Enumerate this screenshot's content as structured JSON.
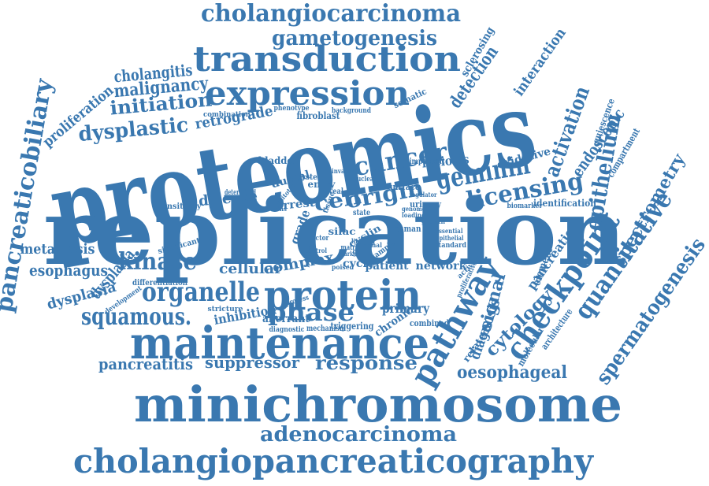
{
  "color": "#3a78b0",
  "words": [
    {
      "id": "proteomics",
      "text": "proteomics"
    },
    {
      "id": "replication",
      "text": "replication"
    },
    {
      "id": "minichromosome",
      "text": "minichromosome"
    },
    {
      "id": "maintenance",
      "text": "maintenance"
    },
    {
      "id": "cholangiopancreaticography",
      "text": "cholangiopancreaticography"
    },
    {
      "id": "protein",
      "text": "protein"
    },
    {
      "id": "transduction",
      "text": "transduction"
    },
    {
      "id": "expression",
      "text": "expression"
    },
    {
      "id": "cholangiocarcinoma",
      "text": "cholangiocarcinoma"
    },
    {
      "id": "gametogenesis",
      "text": "gametogenesis"
    },
    {
      "id": "pancreaticobiliary",
      "text": "pancreaticobiliary"
    },
    {
      "id": "adenocarcinoma",
      "text": "adenocarcinoma"
    },
    {
      "id": "organelle",
      "text": "organelle"
    },
    {
      "id": "pathway",
      "text": "pathway"
    },
    {
      "id": "checkpoint",
      "text": "checkpoint"
    },
    {
      "id": "quantitative",
      "text": "quantitative"
    },
    {
      "id": "spermatogenesis",
      "text": "spermatogenesis"
    },
    {
      "id": "spectrometry",
      "text": "spectrometry"
    },
    {
      "id": "epithelium",
      "text": "epithelium"
    },
    {
      "id": "geminin",
      "text": "geminin"
    },
    {
      "id": "licensing",
      "text": "licensing"
    },
    {
      "id": "cancer",
      "text": "cancer"
    },
    {
      "id": "origin",
      "text": "origin"
    },
    {
      "id": "cell",
      "text": "cell"
    },
    {
      "id": "kinase",
      "text": "kinase"
    },
    {
      "id": "squamous",
      "text": "squamous."
    },
    {
      "id": "phase",
      "text": "phase"
    },
    {
      "id": "response",
      "text": "response"
    },
    {
      "id": "oesophageal",
      "text": "oesophageal"
    },
    {
      "id": "dysplastic",
      "text": "dysplastic"
    },
    {
      "id": "initiation",
      "text": "initiation"
    },
    {
      "id": "malignancy",
      "text": "malignancy"
    },
    {
      "id": "cholangitis",
      "text": "cholangitis"
    },
    {
      "id": "proliferation",
      "text": "proliferation"
    },
    {
      "id": "metastasis",
      "text": "metastasis"
    },
    {
      "id": "esophagus",
      "text": "esophagus"
    },
    {
      "id": "dysplasia",
      "text": "dysplasia"
    },
    {
      "id": "dysplasia2",
      "text": "dysplasia"
    },
    {
      "id": "pancreatitis",
      "text": "pancreatitis"
    },
    {
      "id": "suppressor",
      "text": "suppressor"
    },
    {
      "id": "inhibition",
      "text": "inhibition"
    },
    {
      "id": "complex",
      "text": "complex"
    },
    {
      "id": "cellular",
      "text": "cellular"
    },
    {
      "id": "disease",
      "text": "disease"
    },
    {
      "id": "retrograde",
      "text": "retrograde"
    },
    {
      "id": "meiosis",
      "text": "meiosis"
    },
    {
      "id": "activation",
      "text": "activation"
    },
    {
      "id": "endoscopic",
      "text": "endoscopic"
    },
    {
      "id": "detection",
      "text": "detection"
    },
    {
      "id": "interaction",
      "text": "interaction"
    },
    {
      "id": "sclerosing",
      "text": "sclerosing"
    },
    {
      "id": "cytology",
      "text": "cytology"
    },
    {
      "id": "signal",
      "text": "signal"
    },
    {
      "id": "diagnosis",
      "text": "diagnosis"
    },
    {
      "id": "pancreatic",
      "text": "pancreatic"
    },
    {
      "id": "network",
      "text": "network"
    },
    {
      "id": "patient",
      "text": "patient"
    },
    {
      "id": "primary",
      "text": "primary"
    },
    {
      "id": "aberrant",
      "text": "aberrant"
    },
    {
      "id": "triggering",
      "text": "triggering"
    },
    {
      "id": "chronic",
      "text": "chronic"
    },
    {
      "id": "identification",
      "text": "identification"
    },
    {
      "id": "oxidative",
      "text": "oxidative"
    },
    {
      "id": "compartment",
      "text": "compartment"
    },
    {
      "id": "quiescence",
      "text": "quiescence"
    },
    {
      "id": "element",
      "text": "element"
    },
    {
      "id": "related",
      "text": "related"
    },
    {
      "id": "molecular",
      "text": "molecular"
    },
    {
      "id": "architecture",
      "text": "architecture"
    },
    {
      "id": "grade",
      "text": "grade"
    },
    {
      "id": "arrest",
      "text": "arrest"
    },
    {
      "id": "ductal",
      "text": "ductal"
    },
    {
      "id": "bladder",
      "text": "bladder"
    },
    {
      "id": "fibroblast",
      "text": "fibroblast"
    },
    {
      "id": "combination",
      "text": "combination"
    },
    {
      "id": "phenotype",
      "text": "phenotype"
    },
    {
      "id": "background",
      "text": "background"
    },
    {
      "id": "somatic",
      "text": "somatic"
    },
    {
      "id": "significant",
      "text": "significant"
    },
    {
      "id": "sensitivity",
      "text": "sensitivity"
    },
    {
      "id": "differentiation",
      "text": "differentiation"
    },
    {
      "id": "development",
      "text": "development"
    },
    {
      "id": "stricture",
      "text": "stricture"
    },
    {
      "id": "diagnostic",
      "text": "diagnostic"
    },
    {
      "id": "mechanism",
      "text": "mechanism"
    },
    {
      "id": "combined",
      "text": "combined"
    },
    {
      "id": "cycle",
      "text": "cycle"
    },
    {
      "id": "cyclin",
      "text": "cyclin"
    },
    {
      "id": "silac",
      "text": "silac"
    },
    {
      "id": "human",
      "text": "human"
    },
    {
      "id": "surface",
      "text": "surface"
    },
    {
      "id": "entry",
      "text": "entry"
    },
    {
      "id": "system",
      "text": "system"
    },
    {
      "id": "important",
      "text": "important"
    },
    {
      "id": "urinary",
      "text": "urinary"
    },
    {
      "id": "biomarker",
      "text": "biomarker"
    },
    {
      "id": "standard",
      "text": "standard"
    },
    {
      "id": "essential",
      "text": "essential"
    },
    {
      "id": "epithelial",
      "text": "epithelial"
    },
    {
      "id": "growth",
      "text": "growth"
    },
    {
      "id": "activate",
      "text": "activate"
    },
    {
      "id": "proliferative",
      "text": "proliferative"
    },
    {
      "id": "determined",
      "text": "determined"
    },
    {
      "id": "germ",
      "text": "germ"
    },
    {
      "id": "normal",
      "text": "normal"
    },
    {
      "id": "matrix",
      "text": "matrix"
    },
    {
      "id": "marker",
      "text": "marker"
    },
    {
      "id": "limiting",
      "text": "limiting"
    },
    {
      "id": "sample",
      "text": "sample"
    },
    {
      "id": "state",
      "text": "state"
    },
    {
      "id": "poised",
      "text": "poised"
    },
    {
      "id": "lesions",
      "text": "lesions"
    },
    {
      "id": "factor",
      "text": "factor"
    },
    {
      "id": "nuclear",
      "text": "nuclear"
    },
    {
      "id": "reveal",
      "text": "reveal"
    },
    {
      "id": "regulator",
      "text": "regulator"
    },
    {
      "id": "genome",
      "text": "genome"
    },
    {
      "id": "loading",
      "text": "loading"
    },
    {
      "id": "mitotic",
      "text": "mitotic"
    },
    {
      "id": "biopsy",
      "text": "biopsy"
    },
    {
      "id": "tissue",
      "text": "tissue"
    },
    {
      "id": "invasive",
      "text": "invasive"
    },
    {
      "id": "process",
      "text": "process"
    },
    {
      "id": "control",
      "text": "control"
    }
  ]
}
